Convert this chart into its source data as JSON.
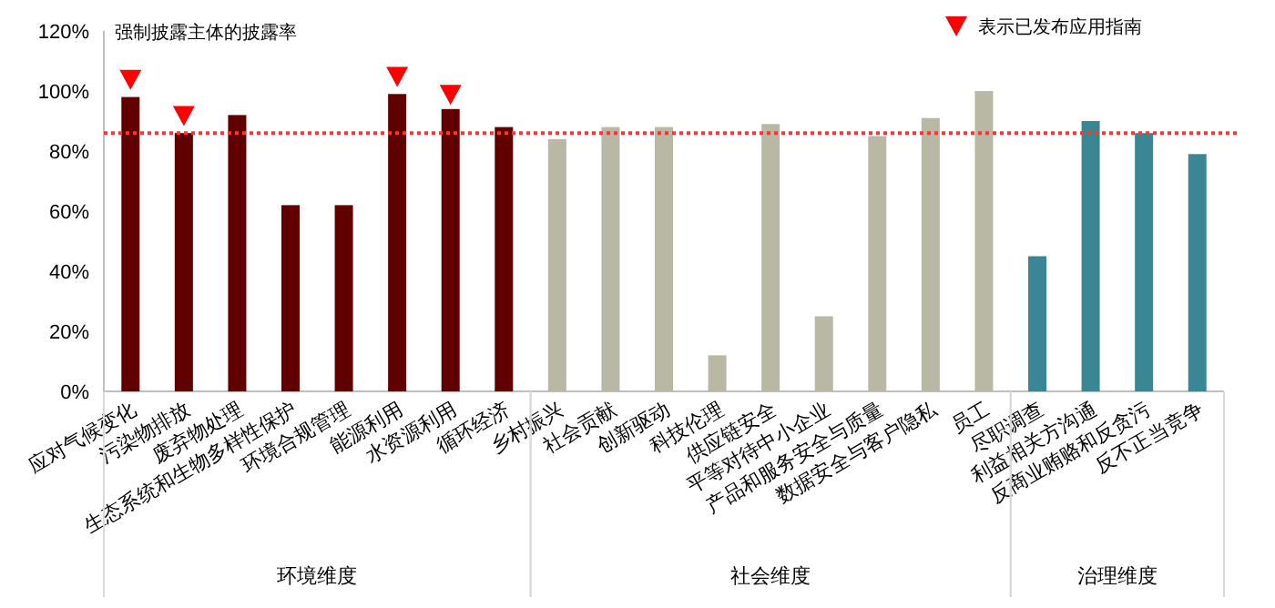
{
  "chart_data": {
    "type": "bar",
    "title": "强制披露主体的披露率",
    "categories": [
      "应对气候变化",
      "污染物排放",
      "废弃物处理",
      "生态系统和生物多样性保护",
      "环境合规管理",
      "能源利用",
      "水资源利用",
      "循环经济",
      "乡村振兴",
      "社会贡献",
      "创新驱动",
      "科技伦理",
      "供应链安全",
      "平等对待中小企业",
      "产品和服务安全与质量",
      "数据安全与客户隐私",
      "员工",
      "尽职调查",
      "利益相关方沟通",
      "反商业贿赂和反贪污",
      "反不正当竞争"
    ],
    "series": [
      {
        "color": "#600000",
        "values": [
          98,
          86,
          92,
          62,
          62,
          99,
          94,
          88,
          null,
          null,
          null,
          null,
          null,
          null,
          null,
          null,
          null,
          null,
          null,
          null,
          null
        ]
      },
      {
        "color": "#b9b8a5",
        "values": [
          null,
          null,
          null,
          null,
          null,
          null,
          null,
          null,
          84,
          88,
          88,
          12,
          89,
          25,
          85,
          91,
          100,
          null,
          null,
          null,
          null
        ]
      },
      {
        "color": "#3a8694",
        "values": [
          null,
          null,
          null,
          null,
          null,
          null,
          null,
          null,
          null,
          null,
          null,
          null,
          null,
          null,
          null,
          null,
          null,
          45,
          90,
          86,
          79
        ]
      },
      {
        "name": "表示已发布应用指南",
        "type": "scatter",
        "marker": "triangle",
        "color": "#ff0000",
        "x": [
          "应对气候变化",
          "污染物排放",
          "能源利用",
          "水资源利用"
        ],
        "values": [
          104,
          92,
          105,
          99
        ]
      }
    ],
    "ylim": [
      0,
      120
    ],
    "yticks": [
      {
        "value": 0,
        "label": "0%"
      },
      {
        "value": 20,
        "label": "20%"
      },
      {
        "value": 40,
        "label": "40%"
      },
      {
        "value": 60,
        "label": "60%"
      },
      {
        "value": 80,
        "label": "80%"
      },
      {
        "value": 100,
        "label": "100%"
      },
      {
        "value": 120,
        "label": "120%"
      }
    ],
    "ref_lines": [
      {
        "axis": "y",
        "value": 86,
        "color": "#ff3333",
        "line_style": "dotted"
      }
    ],
    "annotations": [
      "环境维度",
      "社会维度",
      "治理维度"
    ],
    "legend": "top right"
  }
}
